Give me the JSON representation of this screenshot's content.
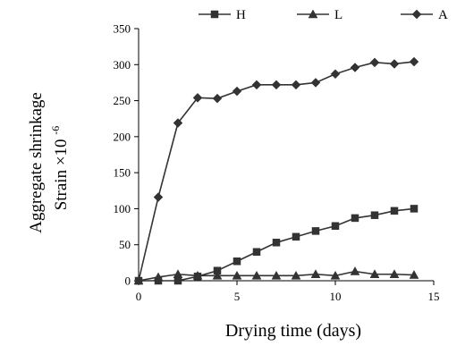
{
  "chart_data": {
    "type": "line",
    "xlabel": "Drying time (days)",
    "ylabel_line1": "Aggregate shrinkage",
    "ylabel_line2": "Strain ×10",
    "ylabel_exponent": "-6",
    "xlim": [
      0,
      15
    ],
    "ylim": [
      0,
      350
    ],
    "xticks": [
      0,
      5,
      10,
      15
    ],
    "yticks": [
      0,
      50,
      100,
      150,
      200,
      250,
      300,
      350
    ],
    "grid": false,
    "legend_position": "top",
    "series": [
      {
        "name": "H",
        "marker": "square",
        "x": [
          0,
          1,
          2,
          3,
          4,
          5,
          6,
          7,
          8,
          9,
          10,
          11,
          12,
          13,
          14
        ],
        "values": [
          0,
          0,
          0,
          6,
          14,
          27,
          40,
          53,
          61,
          69,
          76,
          87,
          91,
          97,
          100
        ]
      },
      {
        "name": "L",
        "marker": "triangle",
        "x": [
          0,
          1,
          2,
          3,
          4,
          5,
          6,
          7,
          8,
          9,
          10,
          11,
          12,
          13,
          14
        ],
        "values": [
          0,
          5,
          9,
          7,
          7,
          7,
          7,
          7,
          7,
          9,
          7,
          13,
          9,
          9,
          8
        ]
      },
      {
        "name": "A",
        "marker": "diamond",
        "x": [
          0,
          1,
          2,
          3,
          4,
          5,
          6,
          7,
          8,
          9,
          10,
          11,
          12,
          13,
          14
        ],
        "values": [
          0,
          116,
          219,
          254,
          253,
          263,
          272,
          272,
          272,
          275,
          287,
          296,
          303,
          301,
          304
        ]
      }
    ]
  },
  "colors": {
    "line": "#333333",
    "axis": "#000000"
  }
}
